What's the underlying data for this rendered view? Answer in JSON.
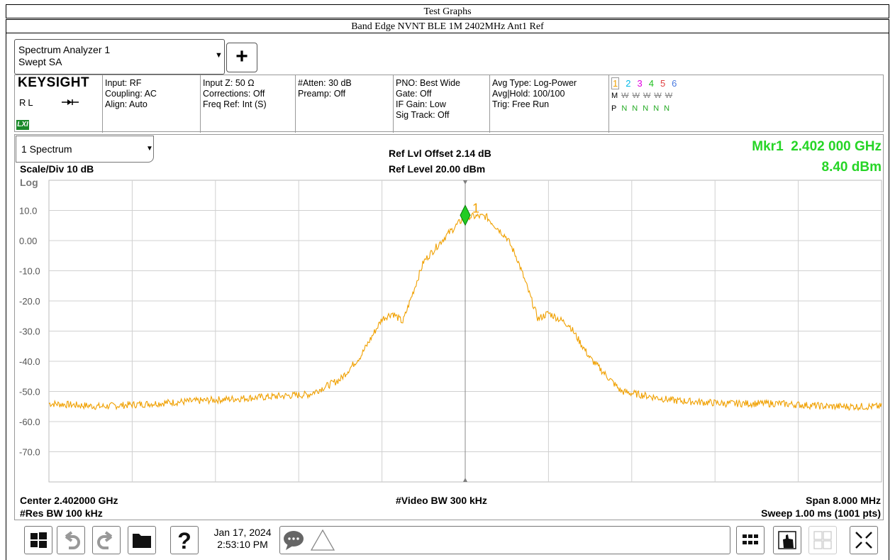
{
  "report": {
    "title": "Test Graphs",
    "subtitle": "Band Edge NVNT BLE 1M 2402MHz Ant1 Ref"
  },
  "analyzer": {
    "name_line1": "Spectrum Analyzer 1",
    "name_line2": "Swept SA",
    "brand": "KEYSIGHT",
    "rl_label": "RL",
    "lxi_label": "LXI"
  },
  "settings": {
    "col1": [
      "Input: RF",
      "Coupling: AC",
      "Align: Auto"
    ],
    "col2": [
      "Input Z: 50 Ω",
      "Corrections: Off",
      "Freq Ref: Int (S)"
    ],
    "col3": [
      "#Atten: 30 dB",
      "Preamp: Off"
    ],
    "col4": [
      "PNO: Best Wide",
      "Gate: Off",
      "IF Gain: Low",
      "Sig Track: Off"
    ],
    "col5": [
      "Avg Type: Log-Power",
      "Avg|Hold: 100/100",
      "Trig: Free Run"
    ],
    "traces": {
      "numbers": [
        "1",
        "2",
        "3",
        "4",
        "5",
        "6"
      ],
      "number_colors": [
        "#f0a000",
        "#00b8e8",
        "#e000e0",
        "#20c020",
        "#e04040",
        "#4a7ae0"
      ],
      "m_row": [
        "M",
        "W",
        "W",
        "W",
        "W",
        "W"
      ],
      "p_row": [
        "P",
        "N",
        "N",
        "N",
        "N",
        "N"
      ]
    }
  },
  "display": {
    "view_select": "1 Spectrum",
    "scale": "Scale/Div 10 dB",
    "log_label": "Log",
    "ref_offset": "Ref Lvl Offset 2.14 dB",
    "ref_level": "Ref Level 20.00 dBm",
    "marker_freq": "Mkr1  2.402 000 GHz",
    "marker_amp": "8.40 dBm",
    "marker_label": "1",
    "y_ticks": [
      "10.0",
      "0.00",
      "-10.0",
      "-20.0",
      "-30.0",
      "-40.0",
      "-50.0",
      "-60.0",
      "-70.0"
    ],
    "center": "Center 2.402000 GHz",
    "res_bw": "#Res BW 100 kHz",
    "video_bw": "#Video BW 300 kHz",
    "span": "Span 8.000 MHz",
    "sweep": "Sweep 1.00 ms (1001 pts)",
    "trace_color": "#f0a000",
    "marker_color": "#22cc22"
  },
  "chart_data": {
    "type": "line",
    "ylim": [
      -80,
      20
    ],
    "xlim": [
      2.398,
      2.406
    ],
    "series": [
      {
        "x": [
          2.398,
          2.3985,
          2.399,
          2.3995,
          2.4,
          2.4005,
          2.4008,
          2.401,
          2.4012,
          2.4013,
          2.4014,
          2.4015,
          2.4016,
          2.4018,
          2.402,
          2.4022,
          2.4024,
          2.4025,
          2.4026,
          2.4027,
          2.4028,
          2.403,
          2.4032,
          2.4035,
          2.404,
          2.4045,
          2.405,
          2.4055,
          2.406
        ],
        "y": [
          -54,
          -55,
          -54,
          -53,
          -52,
          -51,
          -46,
          -38,
          -26,
          -24,
          -27,
          -17,
          -7,
          1,
          8,
          8,
          1,
          -6,
          -16,
          -26,
          -24,
          -28,
          -39,
          -50,
          -53,
          -54,
          -54,
          -55,
          -55
        ]
      }
    ],
    "marker": {
      "x": 2.402,
      "y": 8.4
    }
  },
  "status": {
    "date": "Jan 17, 2024",
    "time": "2:53:10 PM"
  }
}
